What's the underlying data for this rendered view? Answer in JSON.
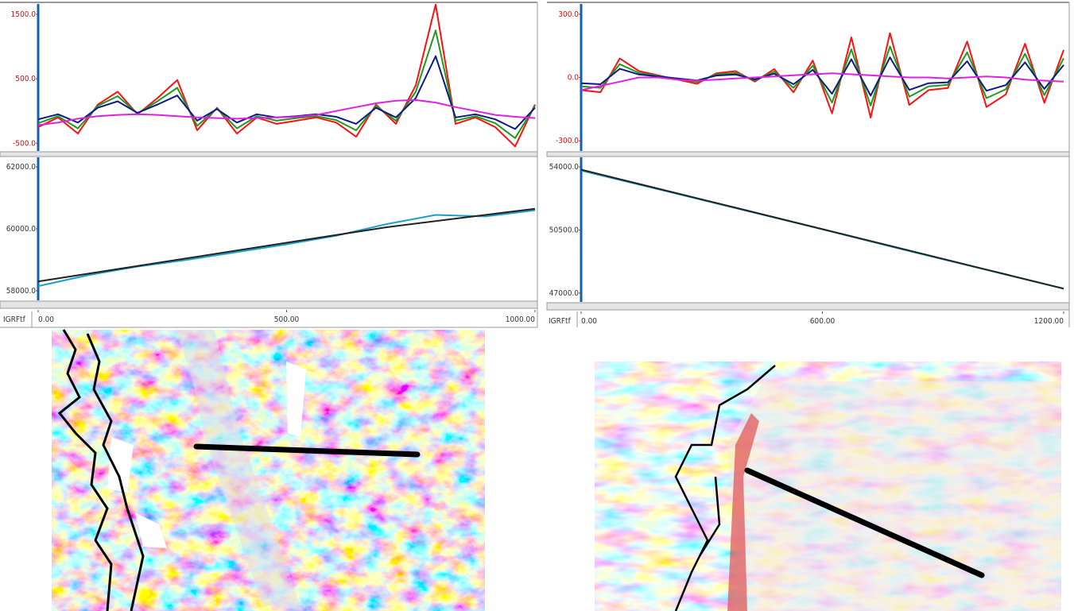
{
  "chart_data": [
    {
      "type": "line",
      "xlim": [
        0,
        1000
      ],
      "ylim": [
        -620,
        1660
      ],
      "yticks": [
        {
          "value": 1500,
          "label": "1500.0"
        },
        {
          "value": 500,
          "label": "500.0"
        },
        {
          "value": -500,
          "label": "-500.0"
        }
      ],
      "x": [
        0,
        40,
        80,
        120,
        160,
        200,
        240,
        280,
        320,
        360,
        400,
        440,
        480,
        520,
        560,
        600,
        640,
        680,
        720,
        760,
        800,
        840,
        880,
        920,
        960,
        1000
      ],
      "series": [
        {
          "color": "#ff1010",
          "values": [
            -250,
            -100,
            -350,
            100,
            300,
            -50,
            200,
            480,
            -300,
            50,
            -350,
            -100,
            -200,
            -150,
            -100,
            -180,
            -400,
            100,
            -200,
            400,
            1650,
            -200,
            -100,
            -250,
            -550,
            100
          ]
        },
        {
          "color": "#1f9a1f",
          "values": [
            -190,
            -80,
            -270,
            80,
            230,
            -40,
            150,
            360,
            -230,
            40,
            -270,
            -80,
            -150,
            -110,
            -80,
            -140,
            -300,
            80,
            -150,
            300,
            1250,
            -150,
            -80,
            -190,
            -420,
            80
          ]
        },
        {
          "color": "#0b1a86",
          "values": [
            -130,
            -50,
            -180,
            50,
            150,
            -30,
            100,
            240,
            -150,
            30,
            -180,
            -50,
            -100,
            -80,
            -50,
            -90,
            -200,
            50,
            -100,
            200,
            850,
            -100,
            -50,
            -130,
            -280,
            50
          ]
        },
        {
          "color": "#e020e0",
          "values": [
            -220,
            -180,
            -120,
            -80,
            -60,
            -50,
            -60,
            -80,
            -100,
            -110,
            -120,
            -110,
            -100,
            -90,
            -60,
            0,
            60,
            120,
            160,
            170,
            130,
            60,
            0,
            -60,
            -90,
            -110
          ]
        }
      ]
    },
    {
      "type": "line",
      "xlim": [
        0,
        1000
      ],
      "ylim": [
        57690,
        62310
      ],
      "yticks": [
        {
          "value": 62000,
          "label": "62000.0"
        },
        {
          "value": 60000,
          "label": "60000.0"
        },
        {
          "value": 58000,
          "label": "58000.0"
        }
      ],
      "x_label": "IGRFtf",
      "xticks": [
        {
          "value": 0,
          "label": "0.00"
        },
        {
          "value": 500,
          "label": "500.00"
        },
        {
          "value": 1000,
          "label": "1000.00"
        }
      ],
      "x": [
        0,
        100,
        200,
        300,
        400,
        500,
        600,
        700,
        800,
        900,
        1000
      ],
      "series": [
        {
          "color": "#1aa0c8",
          "values": [
            58150,
            58500,
            58780,
            59000,
            59250,
            59500,
            59780,
            60150,
            60450,
            60400,
            60600
          ]
        },
        {
          "color": "#222222",
          "values": [
            58300,
            58550,
            58800,
            59050,
            59300,
            59550,
            59800,
            60050,
            60250,
            60450,
            60650
          ]
        }
      ]
    },
    {
      "type": "line",
      "xlim": [
        0,
        1200
      ],
      "ylim": [
        -348,
        348
      ],
      "yticks": [
        {
          "value": 300,
          "label": "300.0"
        },
        {
          "value": 0,
          "label": "0.0"
        },
        {
          "value": -300,
          "label": "-300.0"
        }
      ],
      "x": [
        0,
        48,
        96,
        144,
        192,
        240,
        288,
        336,
        384,
        432,
        480,
        528,
        576,
        624,
        672,
        720,
        768,
        816,
        864,
        912,
        960,
        1008,
        1056,
        1104,
        1152,
        1200
      ],
      "series": [
        {
          "color": "#ff1010",
          "values": [
            -60,
            -70,
            90,
            30,
            10,
            -10,
            -30,
            20,
            30,
            -20,
            40,
            -70,
            80,
            -170,
            190,
            -190,
            210,
            -130,
            -60,
            -50,
            170,
            -140,
            -80,
            160,
            -120,
            130
          ]
        },
        {
          "color": "#1f9a1f",
          "values": [
            -42,
            -49,
            63,
            21,
            7,
            -7,
            -21,
            14,
            21,
            -14,
            28,
            -49,
            56,
            -119,
            133,
            -133,
            147,
            -91,
            -42,
            -35,
            119,
            -98,
            -56,
            112,
            -84,
            91
          ]
        },
        {
          "color": "#0b1a86",
          "values": [
            -27,
            -32,
            41,
            14,
            5,
            -5,
            -14,
            9,
            14,
            -9,
            18,
            -32,
            36,
            -77,
            86,
            -86,
            95,
            -59,
            -27,
            -23,
            77,
            -63,
            -36,
            72,
            -54,
            59
          ]
        },
        {
          "color": "#e020e0",
          "values": [
            -60,
            -40,
            -20,
            0,
            0,
            -10,
            -15,
            -10,
            -5,
            0,
            5,
            10,
            15,
            20,
            15,
            10,
            5,
            0,
            0,
            -5,
            0,
            5,
            0,
            -10,
            -15,
            -20
          ]
        }
      ]
    },
    {
      "type": "line",
      "xlim": [
        0,
        1200
      ],
      "ylim": [
        46510,
        54535
      ],
      "yticks": [
        {
          "value": 54000,
          "label": "54000.0"
        },
        {
          "value": 50500,
          "label": "50500.0"
        },
        {
          "value": 47000,
          "label": "47000.0"
        }
      ],
      "x_label": "IGRFtf",
      "xticks": [
        {
          "value": 0,
          "label": "0.00"
        },
        {
          "value": 600,
          "label": "600.00"
        },
        {
          "value": 1200,
          "label": "1200.00"
        }
      ],
      "x": [
        0,
        200,
        400,
        600,
        800,
        1000,
        1200
      ],
      "series": [
        {
          "color": "#1aa0c8",
          "values": [
            53800,
            52720,
            51630,
            50540,
            49420,
            48330,
            47240
          ]
        },
        {
          "color": "#222222",
          "values": [
            53850,
            52750,
            51650,
            50550,
            49450,
            48350,
            47250
          ]
        }
      ]
    }
  ]
}
